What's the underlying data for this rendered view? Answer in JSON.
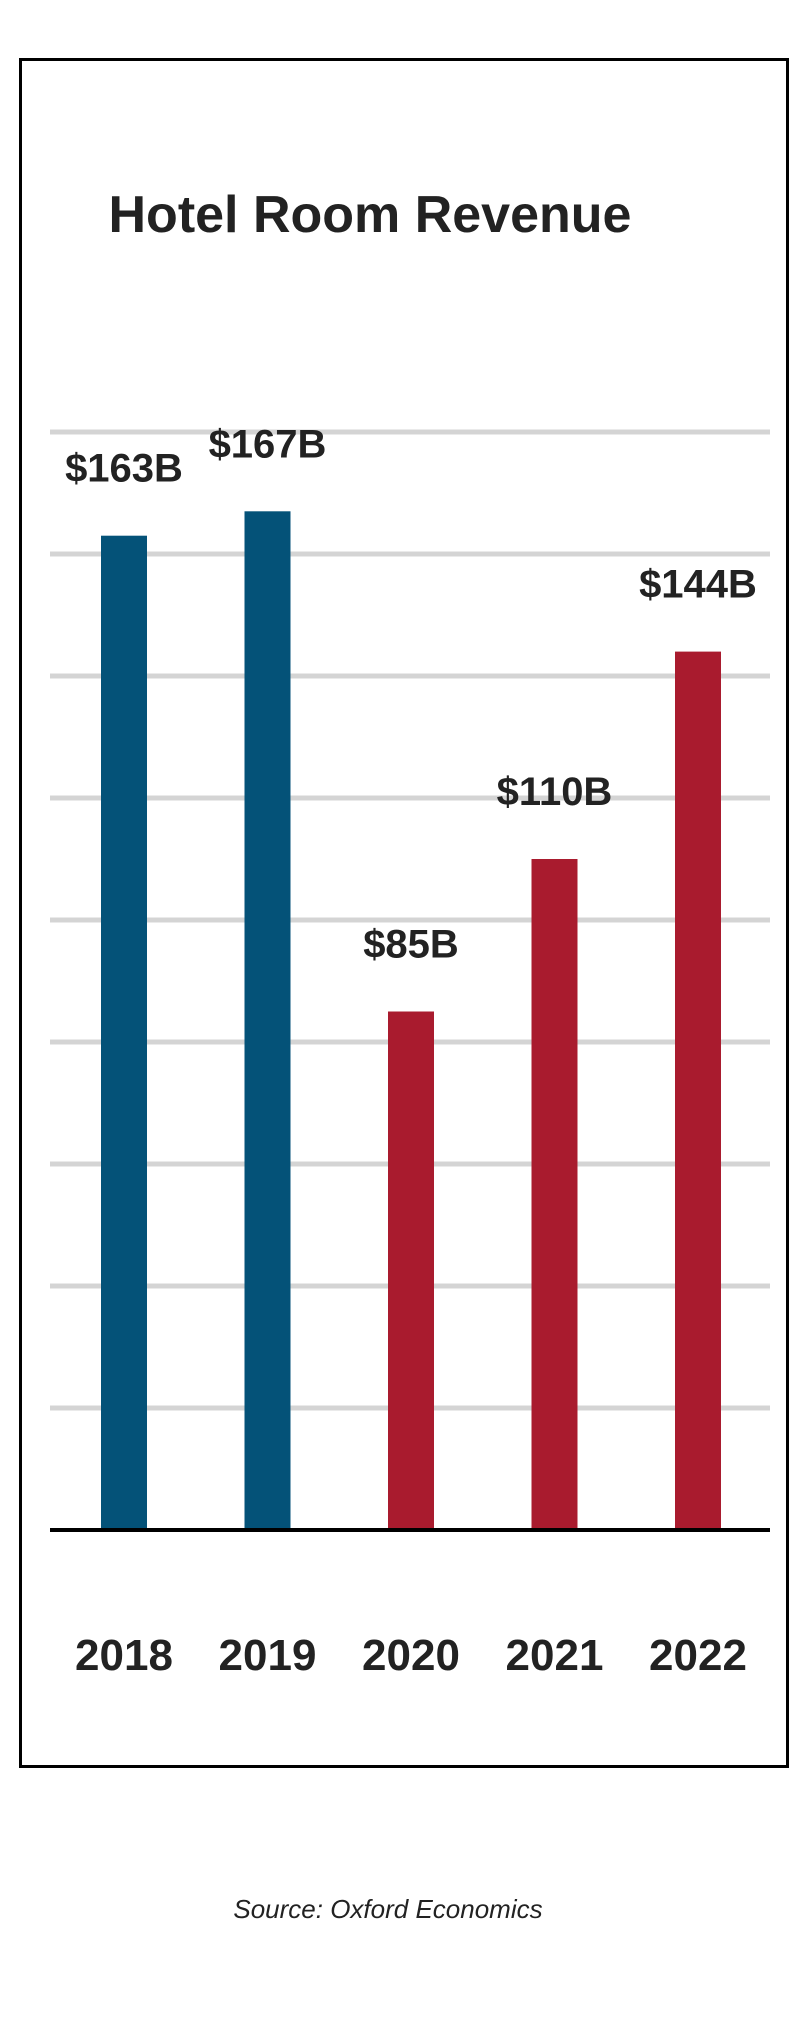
{
  "chart_data": {
    "type": "bar",
    "title": "Hotel Room Revenue",
    "categories": [
      "2018",
      "2019",
      "2020",
      "2021",
      "2022"
    ],
    "values": [
      163,
      167,
      85,
      110,
      144
    ],
    "value_labels": [
      "$163B",
      "$167B",
      "$85B",
      "$110B",
      "$144B"
    ],
    "ylim": [
      0,
      180
    ],
    "grid": true,
    "colors": [
      "#045278",
      "#045278",
      "#a91b2e",
      "#a91b2e",
      "#a91b2e"
    ],
    "source": "Source: Oxford Economics"
  }
}
